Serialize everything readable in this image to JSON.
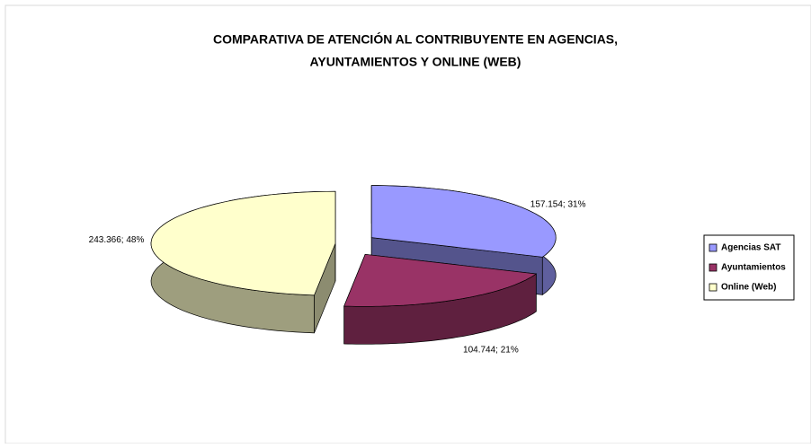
{
  "chart_data": {
    "type": "pie",
    "title": [
      "COMPARATIVA DE ATENCIÓN AL CONTRIBUYENTE EN AGENCIAS,",
      "AYUNTAMIENTOS Y ONLINE (WEB)"
    ],
    "categories": [
      "Agencias SAT",
      "Ayuntamientos",
      "Online (Web)"
    ],
    "values": [
      157154,
      104744,
      243366
    ],
    "value_labels": [
      "157.154; 31%",
      "104.744; 21%",
      "243.366; 48%"
    ],
    "colors": [
      "#9999ff",
      "#993366",
      "#ffffcc"
    ],
    "legend": "right"
  }
}
